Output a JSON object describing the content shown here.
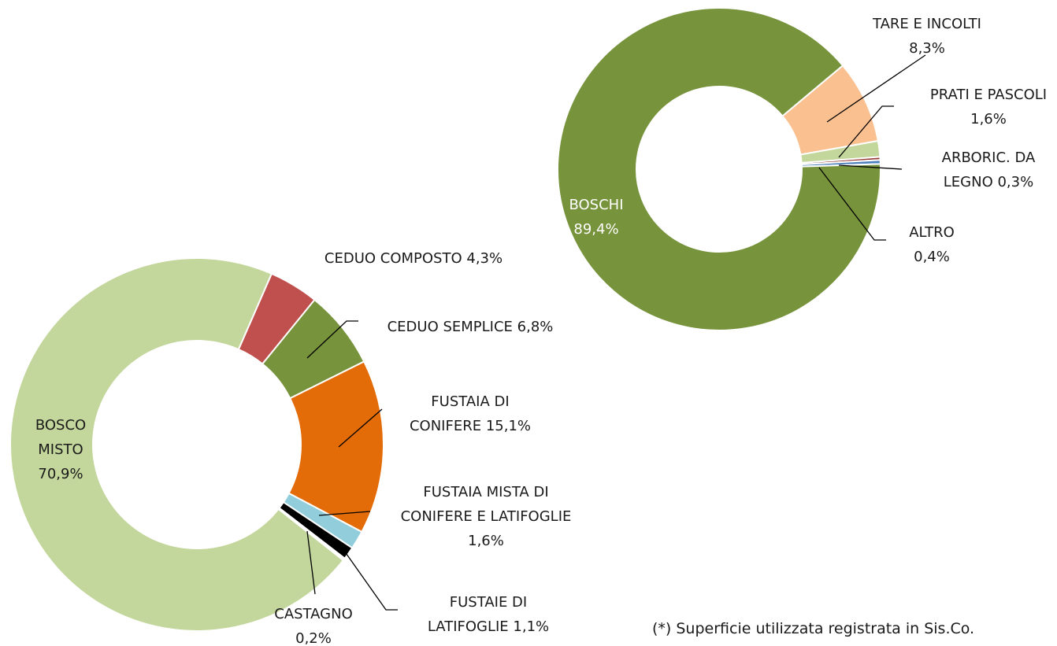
{
  "chart_data": [
    {
      "type": "donut",
      "categories": [
        "TARE E INCOLTI",
        "PRATI E PASCOLI",
        "ARBORIC. DA LEGNO",
        "ALTRO",
        "BOSCHI"
      ],
      "values": [
        8.3,
        1.6,
        0.3,
        0.4,
        89.4
      ],
      "value_labels": [
        "8,3%",
        "1,6%",
        "0,3%",
        "0,4%",
        "89,4%"
      ],
      "colors": [
        "#fac090",
        "#c3d69b",
        "#953735",
        "#4f81bd",
        "#77933c"
      ]
    },
    {
      "type": "donut",
      "categories": [
        "CEDUO COMPOSTO",
        "CEDUO SEMPLICE",
        "FUSTAIA DI CONIFERE",
        "FUSTAIA MISTA DI CONIFERE E LATIFOGLIE",
        "FUSTAIE DI LATIFOGLIE",
        "CASTAGNO",
        "BOSCO MISTO"
      ],
      "values": [
        4.3,
        6.8,
        15.1,
        1.6,
        1.1,
        0.2,
        70.9
      ],
      "value_labels": [
        "4,3%",
        "6,8%",
        "15,1%",
        "1,6%",
        "1,1%",
        "0,2%",
        "70,9%"
      ],
      "colors": [
        "#c0504d",
        "#77933c",
        "#e36c09",
        "#92cddc",
        "#000000",
        "#ffffff",
        "#c3d69b"
      ]
    }
  ],
  "note": "(*) Superficie utilizzata registrata in Sis.Co."
}
